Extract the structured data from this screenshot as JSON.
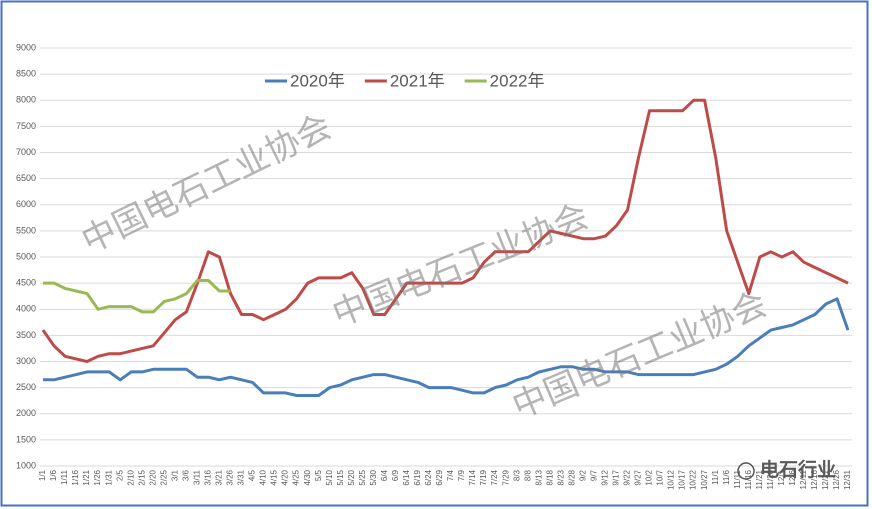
{
  "chart_data": {
    "type": "line",
    "categories": [
      "1/1",
      "1/6",
      "1/11",
      "1/16",
      "1/21",
      "1/26",
      "1/31",
      "2/5",
      "2/10",
      "2/15",
      "2/20",
      "2/25",
      "3/1",
      "3/6",
      "3/11",
      "3/16",
      "3/21",
      "3/26",
      "3/31",
      "4/5",
      "4/10",
      "4/15",
      "4/20",
      "4/25",
      "4/30",
      "5/5",
      "5/10",
      "5/15",
      "5/20",
      "5/25",
      "5/30",
      "6/4",
      "6/9",
      "6/14",
      "6/19",
      "6/24",
      "6/29",
      "7/4",
      "7/9",
      "7/14",
      "7/19",
      "7/24",
      "7/29",
      "8/3",
      "8/8",
      "8/13",
      "8/18",
      "8/23",
      "8/28",
      "9/2",
      "9/7",
      "9/12",
      "9/17",
      "9/22",
      "9/27",
      "10/2",
      "10/7",
      "10/12",
      "10/17",
      "10/22",
      "10/27",
      "11/1",
      "11/6",
      "11/11",
      "11/16",
      "11/21",
      "11/26",
      "12/1",
      "12/6",
      "12/11",
      "12/16",
      "12/21",
      "12/26",
      "12/31"
    ],
    "series": [
      {
        "name": "2020年",
        "color": "#4a7ebb",
        "values": [
          2650,
          2650,
          2700,
          2750,
          2800,
          2800,
          2800,
          2650,
          2800,
          2800,
          2850,
          2850,
          2850,
          2850,
          2700,
          2700,
          2650,
          2700,
          2650,
          2600,
          2400,
          2400,
          2400,
          2350,
          2350,
          2350,
          2500,
          2550,
          2650,
          2700,
          2750,
          2750,
          2700,
          2650,
          2600,
          2500,
          2500,
          2500,
          2450,
          2400,
          2400,
          2500,
          2550,
          2650,
          2700,
          2800,
          2850,
          2900,
          2900,
          2850,
          2850,
          2800,
          2800,
          2800,
          2750,
          2750,
          2750,
          2750,
          2750,
          2750,
          2800,
          2850,
          2950,
          3100,
          3300,
          3450,
          3600,
          3650,
          3700,
          3800,
          3900,
          4100,
          4200,
          3600
        ]
      },
      {
        "name": "2021年",
        "color": "#be4b48",
        "values": [
          3600,
          3300,
          3100,
          3050,
          3000,
          3100,
          3150,
          3150,
          3200,
          3250,
          3300,
          3550,
          3800,
          3950,
          4500,
          5100,
          5000,
          4300,
          3900,
          3900,
          3800,
          3900,
          4000,
          4200,
          4500,
          4600,
          4600,
          4600,
          4700,
          4400,
          3900,
          3900,
          4200,
          4500,
          4500,
          4500,
          4500,
          4500,
          4500,
          4600,
          4900,
          5100,
          5100,
          5100,
          5100,
          5300,
          5500,
          5450,
          5400,
          5350,
          5350,
          5400,
          5600,
          5900,
          6900,
          7800,
          7800,
          7800,
          7800,
          8000,
          8000,
          6900,
          5500,
          4900,
          4300,
          5000,
          5100,
          5000,
          5100,
          4900,
          4800,
          4700,
          4600,
          4500
        ]
      },
      {
        "name": "2022年",
        "color": "#98b954",
        "values": [
          4500,
          4500,
          4400,
          4350,
          4300,
          4000,
          4050,
          4050,
          4050,
          3950,
          3950,
          4150,
          4200,
          4300,
          4550,
          4550,
          4350,
          4350,
          null,
          null,
          null,
          null,
          null,
          null,
          null,
          null,
          null,
          null,
          null,
          null,
          null,
          null,
          null,
          null,
          null,
          null,
          null,
          null,
          null,
          null,
          null,
          null,
          null,
          null,
          null,
          null,
          null,
          null,
          null,
          null,
          null,
          null,
          null,
          null,
          null,
          null,
          null,
          null,
          null,
          null,
          null,
          null,
          null,
          null,
          null,
          null,
          null,
          null,
          null,
          null,
          null,
          null,
          null,
          null
        ]
      }
    ],
    "ylim": [
      1000,
      9000
    ],
    "yticks": [
      1000,
      1500,
      2000,
      2500,
      3000,
      3500,
      4000,
      4500,
      5000,
      5500,
      6000,
      6500,
      7000,
      7500,
      8000,
      8500,
      9000
    ],
    "grid": true,
    "legend": "top",
    "annotations": [
      "中国电石工业协会",
      "中国电石工业协会",
      "中国电石工业协会",
      "电石行业"
    ]
  }
}
